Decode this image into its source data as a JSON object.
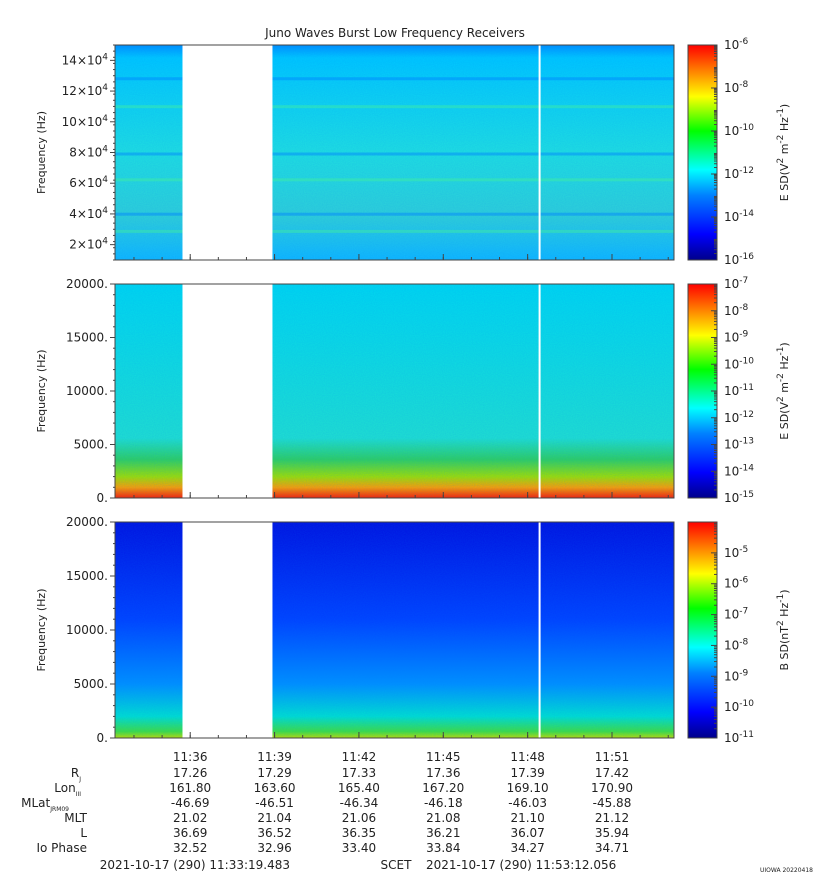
{
  "title": "Juno Waves Burst Low Frequency Receivers",
  "colors": {
    "colormap": [
      "#00008b",
      "#0000ff",
      "#0080ff",
      "#00ffff",
      "#00ff00",
      "#ffff00",
      "#ff8000",
      "#ff0000"
    ],
    "data_gap": "#ffffff"
  },
  "chart_data": [
    {
      "type": "heatmap",
      "panel": "top",
      "ylabel": "Frequency (Hz)",
      "ylim": [
        10000,
        150000
      ],
      "yticks": [
        20000,
        40000,
        60000,
        80000,
        100000,
        120000,
        140000
      ],
      "ytick_labels": [
        {
          "mantissa": "2",
          "exp": "4"
        },
        {
          "mantissa": "4",
          "exp": "4"
        },
        {
          "mantissa": "6",
          "exp": "4"
        },
        {
          "mantissa": "8",
          "exp": "4"
        },
        {
          "mantissa": "10",
          "exp": "4"
        },
        {
          "mantissa": "12",
          "exp": "4"
        },
        {
          "mantissa": "14",
          "exp": "4"
        }
      ],
      "colorbar": {
        "label": "E SD (V² m⁻² Hz⁻¹)",
        "label_parts": [
          "E SD(V",
          "2",
          " m",
          "-2",
          " Hz",
          "-1",
          ")"
        ],
        "range_exp": [
          -16,
          -6
        ],
        "tick_exps": [
          -6,
          -8,
          -10,
          -12,
          -14,
          -16
        ],
        "scale": "log"
      },
      "data_gaps_minutes": [
        [
          2.4,
          5.6
        ]
      ],
      "vertical_markers_minutes": [
        15.1
      ]
    },
    {
      "type": "heatmap",
      "panel": "middle",
      "ylabel": "Frequency (Hz)",
      "ylim": [
        0,
        20000
      ],
      "yticks": [
        0,
        5000,
        10000,
        15000,
        20000
      ],
      "ytick_labels": [
        "0.",
        "5000.",
        "10000.",
        "15000.",
        "20000."
      ],
      "colorbar": {
        "label": "E SD (V² m⁻² Hz⁻¹)",
        "label_parts": [
          "E SD(V",
          "2",
          " m",
          "-2",
          " Hz",
          "-1",
          ")"
        ],
        "range_exp": [
          -15,
          -7
        ],
        "tick_exps": [
          -7,
          -8,
          -9,
          -10,
          -11,
          -12,
          -13,
          -14,
          -15
        ],
        "scale": "log"
      },
      "data_gaps_minutes": [
        [
          2.4,
          5.6
        ]
      ],
      "vertical_markers_minutes": [
        15.1
      ]
    },
    {
      "type": "heatmap",
      "panel": "bottom",
      "ylabel": "Frequency (Hz)",
      "ylim": [
        0,
        20000
      ],
      "yticks": [
        0,
        5000,
        10000,
        15000,
        20000
      ],
      "ytick_labels": [
        "0.",
        "5000.",
        "10000.",
        "15000.",
        "20000."
      ],
      "colorbar": {
        "label": "B SD (nT² Hz⁻¹)",
        "label_parts": [
          "B SD(nT",
          "2",
          " Hz",
          "-1",
          ")"
        ],
        "range_exp": [
          -11,
          -4
        ],
        "tick_exps": [
          -5,
          -6,
          -7,
          -8,
          -9,
          -10,
          -11
        ],
        "scale": "log"
      },
      "data_gaps_minutes": [
        [
          2.4,
          5.6
        ]
      ],
      "vertical_markers_minutes": [
        15.1
      ]
    }
  ],
  "time_axis": {
    "start": "11:33:19.483",
    "end": "11:53:12.056",
    "span_minutes": 19.88,
    "tick_minutes": [
      2.675,
      5.675,
      8.675,
      11.675,
      14.675,
      17.675
    ],
    "tick_labels": [
      "11:36",
      "11:39",
      "11:42",
      "11:45",
      "11:48",
      "11:51"
    ]
  },
  "ephemeris": [
    {
      "label": "R",
      "sub": "J",
      "values": [
        "17.26",
        "17.29",
        "17.33",
        "17.36",
        "17.39",
        "17.42"
      ]
    },
    {
      "label": "Lon",
      "sub": "III",
      "values": [
        "161.80",
        "163.60",
        "165.40",
        "167.20",
        "169.10",
        "170.90"
      ]
    },
    {
      "label": "MLat",
      "sub": "JRM09",
      "values": [
        "-46.69",
        "-46.51",
        "-46.34",
        "-46.18",
        "-46.03",
        "-45.88"
      ]
    },
    {
      "label": "MLT",
      "sub": "",
      "values": [
        "21.02",
        "21.04",
        "21.06",
        "21.08",
        "21.10",
        "21.12"
      ]
    },
    {
      "label": "L",
      "sub": "",
      "values": [
        "36.69",
        "36.52",
        "36.35",
        "36.21",
        "36.07",
        "35.94"
      ]
    },
    {
      "label": "Io Phase",
      "sub": "",
      "values": [
        "32.52",
        "32.96",
        "33.40",
        "33.84",
        "34.27",
        "34.71"
      ]
    }
  ],
  "footer": {
    "start_label": "2021-10-17 (290) 11:33:19.483",
    "scet_label": "SCET",
    "end_label": "2021-10-17 (290) 11:53:12.056",
    "stamp": "UIOWA 20220418"
  }
}
